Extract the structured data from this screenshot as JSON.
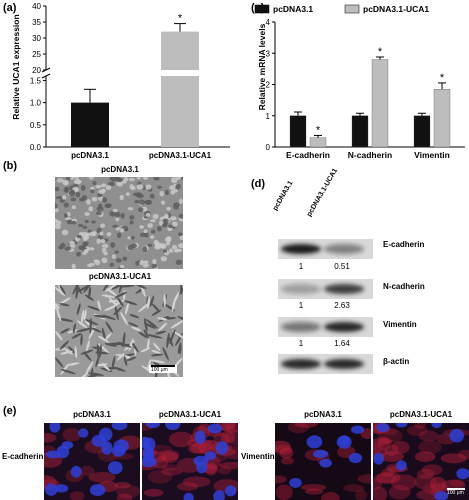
{
  "panels": {
    "a": "(a)",
    "b": "(b)",
    "c": "(c)",
    "d": "(d)",
    "e": "(e)"
  },
  "colors": {
    "dark_bar": "#111111",
    "light_bar": "#bdbdbd",
    "blot_band": "#1a1a1a"
  },
  "chart_data": [
    {
      "type": "bar",
      "panel": "a",
      "categories": [
        "pcDNA3.1",
        "pcDNA3.1-UCA1"
      ],
      "values": [
        1.0,
        32.0
      ],
      "errors": [
        0.3,
        2.5
      ],
      "significance": [
        "",
        "*"
      ],
      "ylabel": "Relative UCA1 expression",
      "axis_break": true,
      "lower_ticks": [
        "0.0",
        "0.5",
        "1.0",
        "1.5"
      ],
      "upper_ticks": [
        "20",
        "25",
        "30",
        "35",
        "40"
      ],
      "ylim_lower": [
        0,
        1.6
      ],
      "ylim_upper": [
        20,
        40
      ]
    },
    {
      "type": "bar",
      "panel": "c",
      "categories": [
        "E-cadherin",
        "N-cadherin",
        "Vimentin"
      ],
      "series": [
        {
          "name": "pcDNA3.1",
          "values": [
            1.0,
            1.0,
            1.0
          ],
          "errors": [
            0.12,
            0.08,
            0.08
          ]
        },
        {
          "name": "pcDNA3.1-UCA1",
          "values": [
            0.3,
            2.8,
            1.85
          ],
          "errors": [
            0.07,
            0.08,
            0.2
          ],
          "significance": [
            "*",
            "*",
            "*"
          ]
        }
      ],
      "ylabel": "Relative mRNA levels",
      "yticks": [
        "0",
        "1",
        "2",
        "3",
        "4"
      ],
      "ylim": [
        0,
        4
      ],
      "legend": "top"
    }
  ],
  "panel_b": {
    "top_title": "pcDNA3.1",
    "bottom_title": "pcDNA3.1-UCA1",
    "scale_bar": "100 μm"
  },
  "panel_d": {
    "lanes": [
      "pcDNA3.1",
      "pcDNA3.1-UCA1"
    ],
    "proteins": [
      {
        "name": "E-cadherin",
        "values": [
          "1",
          "0.51"
        ],
        "intensity": [
          1.0,
          0.45
        ]
      },
      {
        "name": "N-cadherin",
        "values": [
          "1",
          "2.63"
        ],
        "intensity": [
          0.3,
          0.8
        ]
      },
      {
        "name": "Vimentin",
        "values": [
          "1",
          "1.64"
        ],
        "intensity": [
          0.5,
          0.95
        ]
      },
      {
        "name": "β-actin",
        "values": [],
        "intensity": [
          0.9,
          0.9
        ]
      }
    ]
  },
  "panel_e": {
    "left_row_label": "E-cadherin",
    "right_row_label": "Vimentin",
    "col_titles": [
      "pcDNA3.1",
      "pcDNA3.1-UCA1",
      "pcDNA3.1",
      "pcDNA3.1-UCA1"
    ],
    "scale_bar": "100 μm"
  }
}
